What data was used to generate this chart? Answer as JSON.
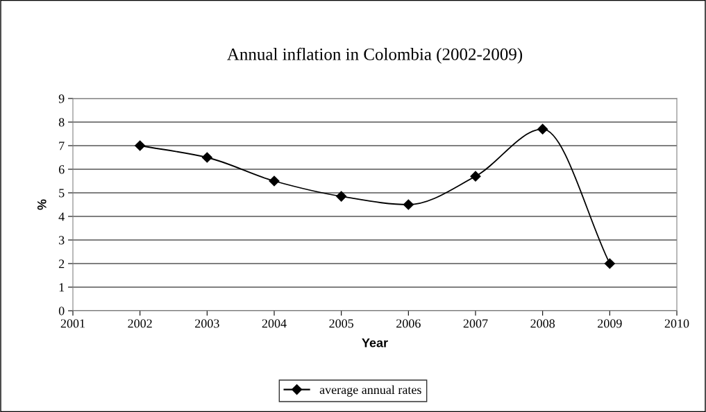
{
  "chart_data": {
    "type": "line",
    "title": "Annual inflation in Colombia (2002-2009)",
    "xlabel": "Year",
    "ylabel": "%",
    "x": [
      2002,
      2003,
      2004,
      2005,
      2006,
      2007,
      2008,
      2009
    ],
    "series": [
      {
        "name": "average annual rates",
        "color": "#000000",
        "values": [
          7.0,
          6.5,
          5.5,
          4.85,
          4.5,
          5.7,
          7.7,
          2.0
        ]
      }
    ],
    "xlim": [
      2001,
      2010
    ],
    "xticks": [
      2001,
      2002,
      2003,
      2004,
      2005,
      2006,
      2007,
      2008,
      2009,
      2010
    ],
    "ylim": [
      0,
      9
    ],
    "yticks": [
      0,
      1,
      2,
      3,
      4,
      5,
      6,
      7,
      8,
      9
    ],
    "grid": "y",
    "legend": "bottom",
    "marker": "diamond",
    "line_style": "solid"
  }
}
